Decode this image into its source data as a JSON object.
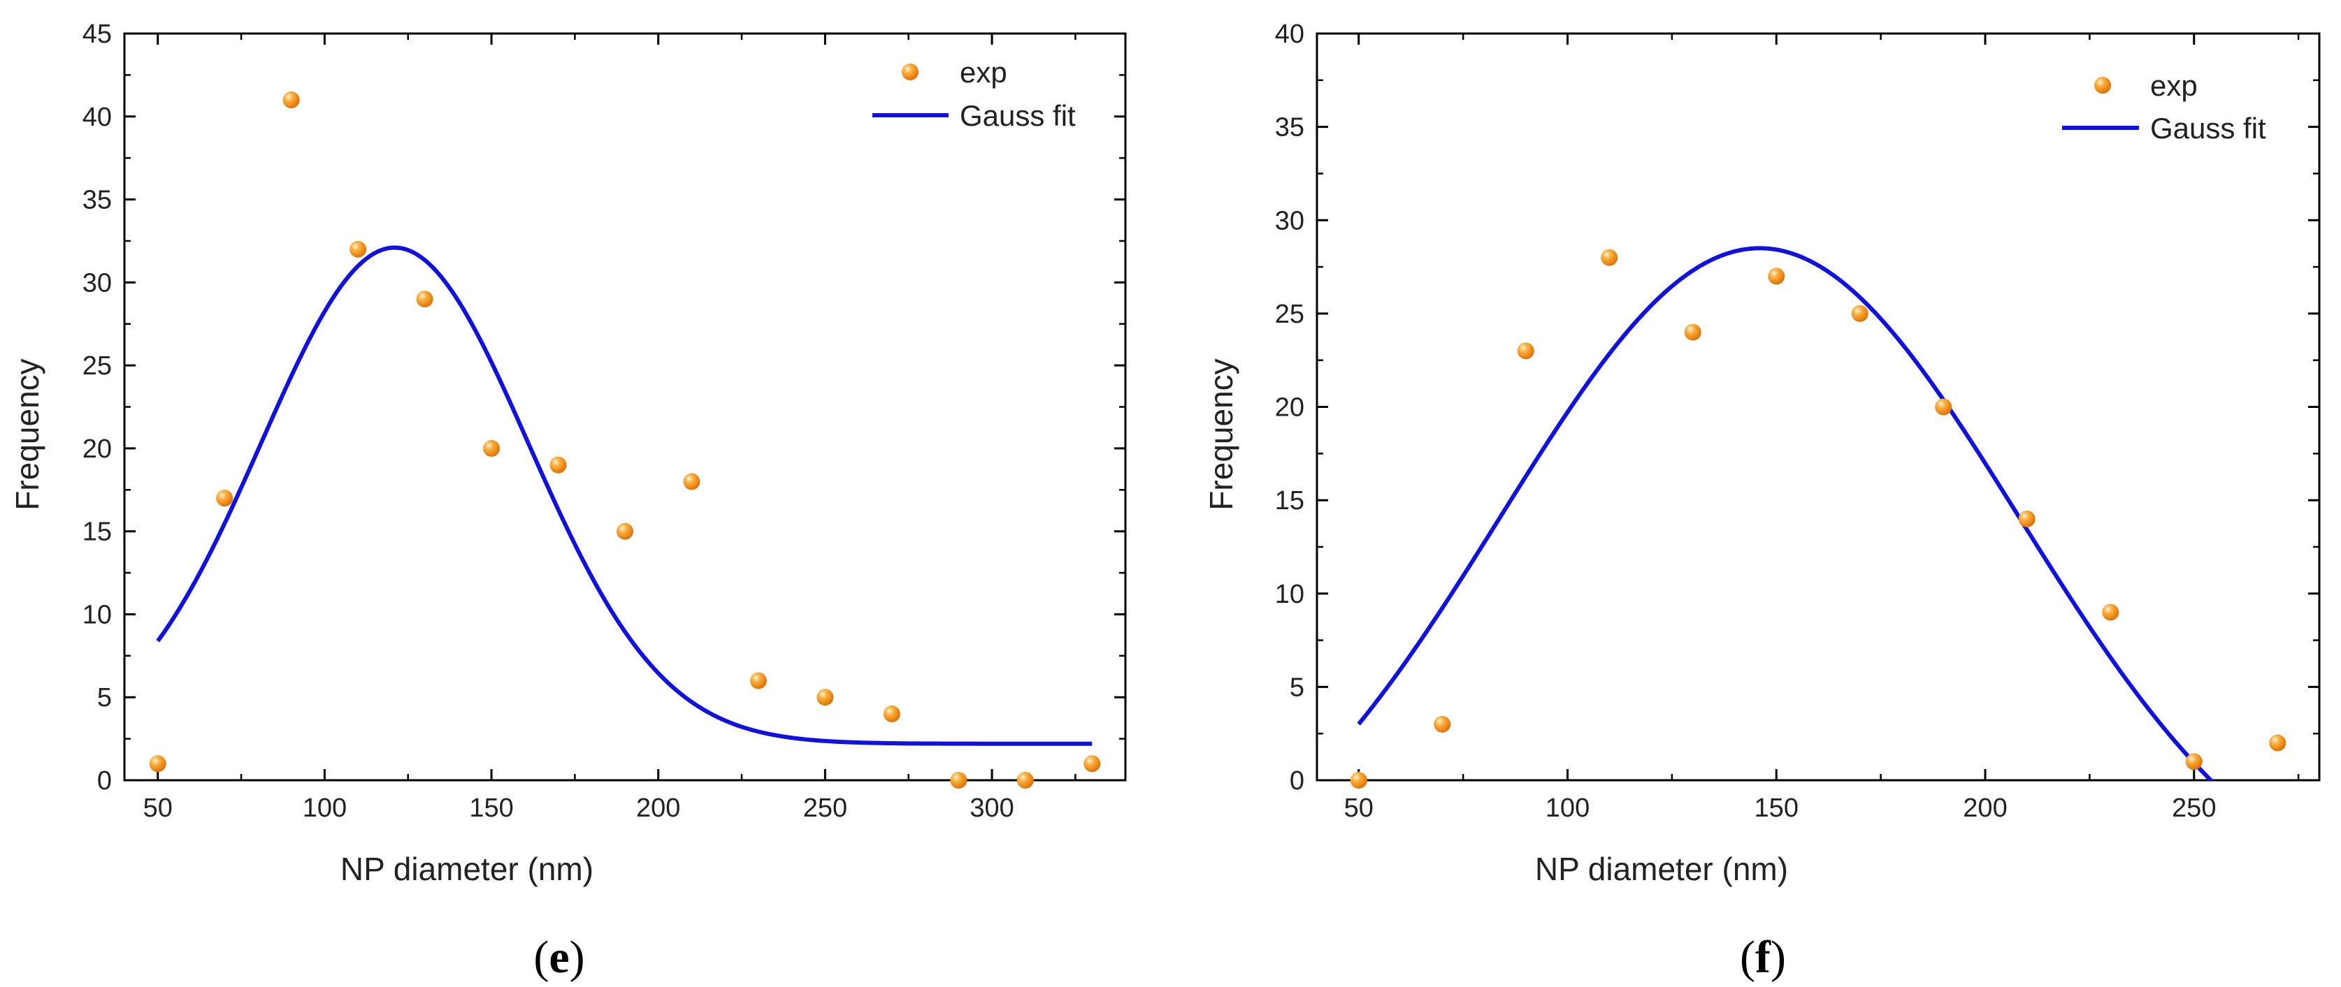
{
  "chart_data": [
    {
      "type": "scatter",
      "panel_label": "e",
      "xlabel": "NP diameter (nm)",
      "ylabel": "Frequency",
      "xlim": [
        40,
        340
      ],
      "ylim": [
        0,
        45
      ],
      "xticks": [
        50,
        100,
        150,
        200,
        250,
        300
      ],
      "yticks": [
        0,
        5,
        10,
        15,
        20,
        25,
        30,
        35,
        40,
        45
      ],
      "legend_position": "top-right",
      "series": [
        {
          "name": "exp",
          "kind": "points",
          "color": "#f7931e",
          "x": [
            50,
            70,
            90,
            110,
            130,
            150,
            170,
            190,
            210,
            230,
            250,
            270,
            290,
            310,
            330
          ],
          "y": [
            1,
            17,
            41,
            32,
            29,
            20,
            19,
            15,
            18,
            6,
            5,
            4,
            0,
            0,
            1
          ]
        },
        {
          "name": "Gauss fit",
          "kind": "gauss",
          "color": "#1010e0",
          "x_range": [
            50,
            330
          ],
          "y0": 2.2,
          "A": 29.9,
          "xc": 121,
          "sigma": 40
        }
      ]
    },
    {
      "type": "scatter",
      "panel_label": "f",
      "xlabel": "NP diameter (nm)",
      "ylabel": "Frequency",
      "xlim": [
        40,
        280
      ],
      "ylim": [
        0,
        40
      ],
      "xticks": [
        50,
        100,
        150,
        200,
        250
      ],
      "yticks": [
        0,
        5,
        10,
        15,
        20,
        25,
        30,
        35,
        40
      ],
      "legend_position": "top-right",
      "series": [
        {
          "name": "exp",
          "kind": "points",
          "color": "#f7931e",
          "x": [
            50,
            70,
            90,
            110,
            130,
            150,
            170,
            190,
            210,
            230,
            250,
            270
          ],
          "y": [
            0,
            3,
            23,
            28,
            24,
            27,
            25,
            20,
            14,
            9,
            1,
            2
          ]
        },
        {
          "name": "Gauss fit",
          "kind": "gauss",
          "color": "#1010e0",
          "x_range": [
            50,
            260
          ],
          "y0": -8,
          "A": 36.5,
          "xc": 146,
          "sigma": 62
        }
      ]
    }
  ]
}
